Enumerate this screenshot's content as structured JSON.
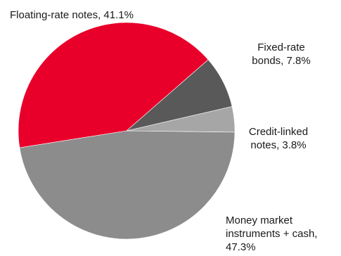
{
  "chart_data": {
    "type": "pie",
    "slices": [
      {
        "label_lines": [
          "Floating-rate notes, 41.1%"
        ],
        "value": 41.1,
        "color": "#e8002a"
      },
      {
        "label_lines": [
          "Fixed-rate",
          "bonds, 7.8%"
        ],
        "value": 7.8,
        "color": "#595959"
      },
      {
        "label_lines": [
          "Credit-linked",
          "notes, 3.8%"
        ],
        "value": 3.8,
        "color": "#a6a6a6"
      },
      {
        "label_lines": [
          "Money market",
          "instruments + cash,",
          "47.3%"
        ],
        "value": 47.3,
        "color": "#8c8c8c"
      }
    ]
  }
}
